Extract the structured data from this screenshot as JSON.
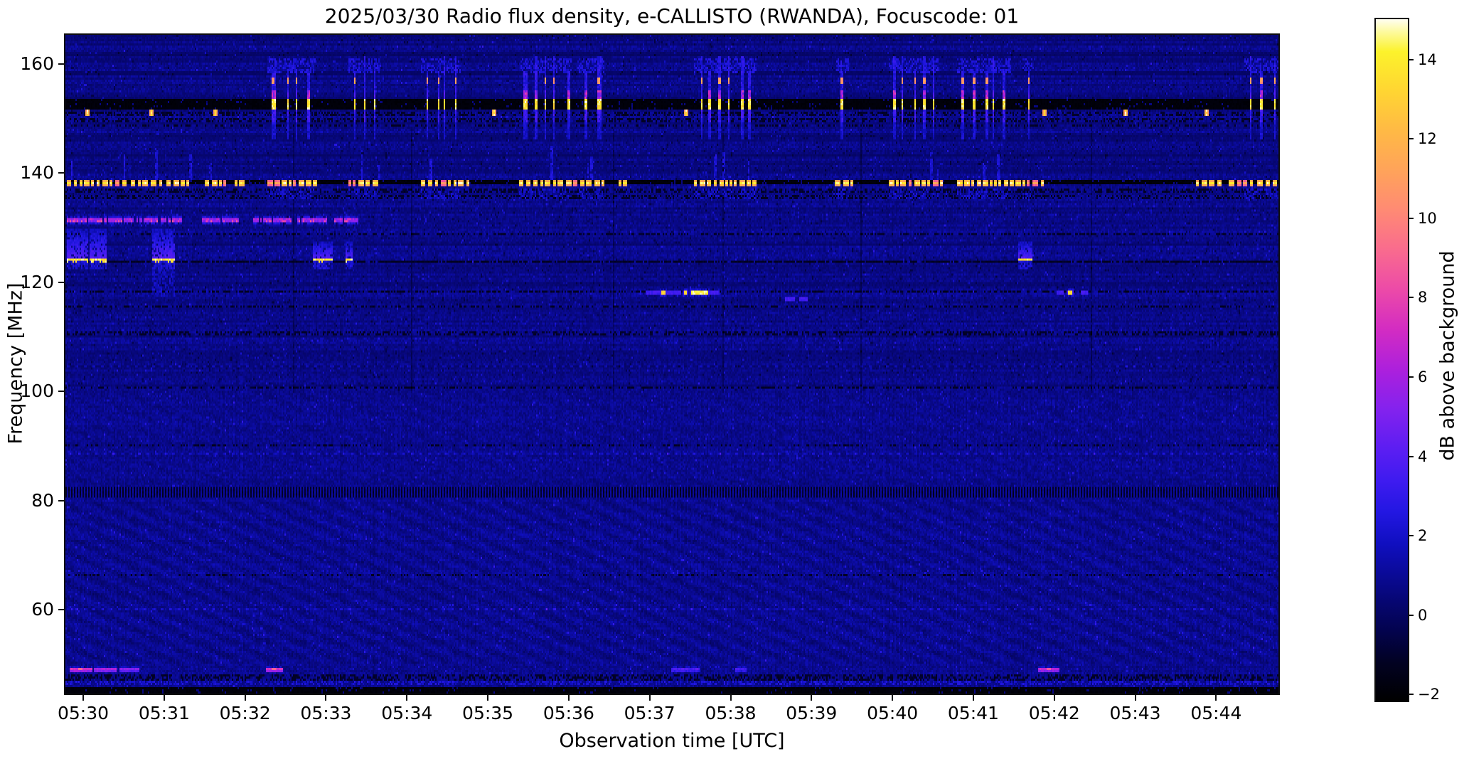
{
  "chart_data": {
    "type": "heatmap",
    "title": "2025/03/30  Radio flux density, e-CALLISTO (RWANDA), Focuscode: 01",
    "xlabel": "Observation time [UTC]",
    "ylabel": "Frequency [MHz]",
    "colorbar_label": "dB above background",
    "x_ticks": [
      "05:30",
      "05:31",
      "05:32",
      "05:33",
      "05:34",
      "05:35",
      "05:36",
      "05:37",
      "05:38",
      "05:39",
      "05:40",
      "05:41",
      "05:42",
      "05:43",
      "05:44"
    ],
    "x_tick_minutes": [
      330,
      331,
      332,
      333,
      334,
      335,
      336,
      337,
      338,
      339,
      340,
      341,
      342,
      343,
      344
    ],
    "x_domain_minutes": [
      329.78,
      344.77
    ],
    "y_ticks": [
      160,
      140,
      120,
      100,
      80,
      60
    ],
    "y_domain_mhz": [
      44.6,
      165.35
    ],
    "grid": false,
    "colorbar_ticks": [
      "14",
      "12",
      "10",
      "8",
      "6",
      "4",
      "2",
      "0",
      "−2"
    ],
    "colorbar_tick_values": [
      14,
      12,
      10,
      8,
      6,
      4,
      2,
      0,
      -2
    ],
    "colorbar_domain_db": [
      -2.16,
      15.02
    ],
    "colormap": [
      [
        -2.16,
        "#000000"
      ],
      [
        -1.2,
        "#020222"
      ],
      [
        -0.4,
        "#03034e"
      ],
      [
        0.3,
        "#060670"
      ],
      [
        1.0,
        "#0a0a96"
      ],
      [
        1.8,
        "#100fc0"
      ],
      [
        2.6,
        "#2317e2"
      ],
      [
        3.4,
        "#3f1bf0"
      ],
      [
        4.2,
        "#5c1ef2"
      ],
      [
        5.2,
        "#8422ee"
      ],
      [
        6.2,
        "#ad20dc"
      ],
      [
        7.2,
        "#d32cc2"
      ],
      [
        8.2,
        "#ec4aa8"
      ],
      [
        9.2,
        "#f96b8e"
      ],
      [
        10.2,
        "#ff8a74"
      ],
      [
        11.2,
        "#ffa35a"
      ],
      [
        12.2,
        "#ffb945"
      ],
      [
        13.2,
        "#ffd532"
      ],
      [
        14.2,
        "#fcf22b"
      ],
      [
        14.7,
        "#fdfa9e"
      ],
      [
        15.02,
        "#fffef2"
      ]
    ],
    "background_value_db": 0.8,
    "features": {
      "black_bands": [
        [
          153.65,
          151.85
        ],
        [
          138.85,
          137.9
        ],
        [
          45.8,
          44.6
        ]
      ],
      "speckle_dark_rows": [
        [
          151.35,
          150.45
        ],
        [
          150.0,
          149.45
        ],
        [
          137.35,
          136.5
        ],
        [
          136.1,
          135.4
        ],
        [
          128.95,
          128.45
        ],
        [
          115.9,
          115.3
        ],
        [
          111.2,
          110.4
        ],
        [
          100.9,
          100.4
        ],
        [
          48.1,
          47.1
        ]
      ],
      "speckle_blue_rows": [
        [
          46.9,
          46.1
        ]
      ],
      "comb_rows": [
        [
          82.4,
          80.6
        ]
      ],
      "dotted_rows": [
        104.6,
        88.6,
        60.3
      ],
      "dark_lines": [
        [
          124.05,
          0.85
        ],
        [
          118.65,
          0.5
        ],
        [
          148.95,
          0.35
        ],
        [
          90.3,
          0.3
        ],
        [
          66.4,
          0.3
        ]
      ],
      "vertical_dark_lines": [
        332.6,
        334.05,
        336.55,
        337.9,
        339.6,
        342.45
      ],
      "clusters_152": [
        [
          332.28,
          332.85
        ],
        [
          333.28,
          333.65
        ],
        [
          334.18,
          334.65
        ],
        [
          335.38,
          336.02
        ],
        [
          336.1,
          336.42
        ],
        [
          337.55,
          338.3
        ],
        [
          339.3,
          339.45
        ],
        [
          339.95,
          340.55
        ],
        [
          340.8,
          341.45
        ],
        [
          341.6,
          341.72
        ],
        [
          344.35,
          344.77
        ]
      ],
      "dots_151": [
        330.02,
        330.82,
        331.6,
        335.05,
        337.42,
        341.86,
        342.85,
        343.85
      ],
      "band_138_bright_segments": [
        [
          329.8,
          330.52
        ],
        [
          330.58,
          330.95
        ],
        [
          331.02,
          331.32
        ],
        [
          331.5,
          331.78
        ],
        [
          331.88,
          332.02
        ],
        [
          332.28,
          332.88
        ],
        [
          333.28,
          333.68
        ],
        [
          334.18,
          334.78
        ],
        [
          335.38,
          336.45
        ],
        [
          336.62,
          336.72
        ],
        [
          337.55,
          338.35
        ],
        [
          339.28,
          339.5
        ],
        [
          339.95,
          340.6
        ],
        [
          340.8,
          341.85
        ],
        [
          343.75,
          344.1
        ],
        [
          344.15,
          344.45
        ],
        [
          344.5,
          344.77
        ]
      ],
      "streak_131": {
        "f": 131.6,
        "segments": [
          [
            329.8,
            330.6
          ],
          [
            330.65,
            331.2
          ],
          [
            331.45,
            331.9
          ],
          [
            332.1,
            332.55
          ],
          [
            332.65,
            333.0
          ],
          [
            333.1,
            333.38
          ]
        ]
      },
      "line_124": {
        "f": 124.1,
        "segments": [
          [
            329.8,
            330.05
          ],
          [
            330.08,
            330.27
          ],
          [
            330.86,
            331.12
          ],
          [
            332.83,
            333.07
          ],
          [
            333.25,
            333.32
          ],
          [
            341.55,
            341.72
          ]
        ]
      },
      "dashes_118": {
        "f": 118.3,
        "segments": [
          [
            336.95,
            337.12,
            3.2
          ],
          [
            337.13,
            337.2,
            12.5
          ],
          [
            337.22,
            337.38,
            3.2
          ],
          [
            337.4,
            337.46,
            12.5
          ],
          [
            337.5,
            337.72,
            13.5
          ],
          [
            337.74,
            337.84,
            3.2
          ],
          [
            342.02,
            342.1,
            3.2
          ],
          [
            342.15,
            342.23,
            12.5
          ],
          [
            342.33,
            342.4,
            3.2
          ]
        ]
      },
      "dots_117": [
        [
          338.68,
          338.77
        ],
        [
          338.85,
          338.93
        ]
      ],
      "line_49": {
        "f": 49.15,
        "segments": [
          [
            329.83,
            330.1,
            6.5
          ],
          [
            330.14,
            330.4,
            5.5
          ],
          [
            330.45,
            330.68,
            4.5
          ],
          [
            332.26,
            332.45,
            6.5
          ],
          [
            337.27,
            337.6,
            3.0
          ],
          [
            338.05,
            338.18,
            2.8
          ],
          [
            341.8,
            342.05,
            6.0
          ]
        ]
      }
    }
  }
}
